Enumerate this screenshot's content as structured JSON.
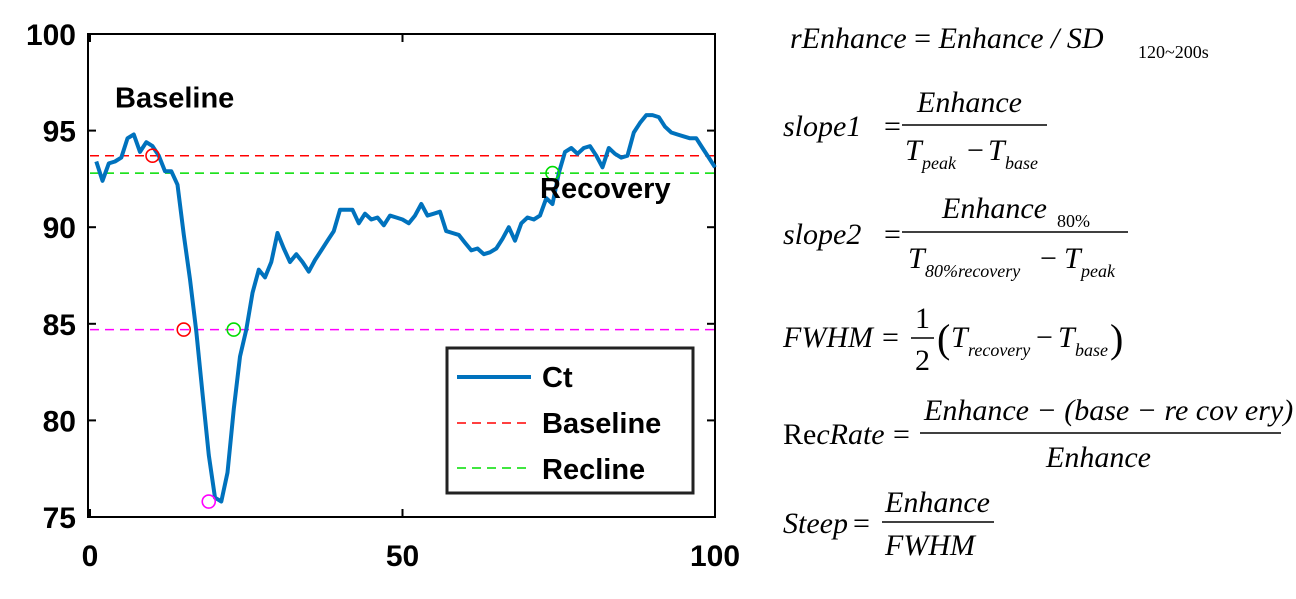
{
  "chart_data": {
    "type": "line",
    "xlim": [
      0,
      100
    ],
    "ylim": [
      75,
      100
    ],
    "xticks": [
      0,
      50,
      100
    ],
    "yticks": [
      75,
      80,
      85,
      90,
      95,
      100
    ],
    "xtick_labels": [
      "0",
      "50",
      "100"
    ],
    "ytick_labels": [
      "75",
      "80",
      "85",
      "90",
      "95",
      "100"
    ],
    "title": "",
    "xlabel": "",
    "ylabel": "",
    "grid": false,
    "legend_position": "bottom-right",
    "series": [
      {
        "name": "Ct",
        "color": "#0072BD",
        "x": [
          1,
          2,
          3,
          4,
          5,
          6,
          7,
          8,
          9,
          10,
          11,
          12,
          13,
          14,
          15,
          16,
          17,
          18,
          19,
          20,
          21,
          22,
          23,
          24,
          25,
          26,
          27,
          28,
          29,
          30,
          31,
          32,
          33,
          34,
          35,
          36,
          37,
          38,
          39,
          40,
          41,
          42,
          43,
          44,
          45,
          46,
          47,
          48,
          49,
          50,
          51,
          52,
          53,
          54,
          55,
          56,
          57,
          58,
          59,
          60,
          61,
          62,
          63,
          64,
          65,
          66,
          67,
          68,
          69,
          70,
          71,
          72,
          73,
          74,
          75,
          76,
          77,
          78,
          79,
          80,
          81,
          82,
          83,
          84,
          85,
          86,
          87,
          88,
          89,
          90,
          91,
          92,
          93,
          94,
          95,
          96,
          97,
          98,
          99,
          100
        ],
        "y": [
          93.4,
          92.4,
          93.3,
          93.4,
          93.6,
          94.6,
          94.8,
          93.9,
          94.4,
          94.2,
          93.7,
          92.9,
          92.9,
          92.2,
          89.6,
          87.3,
          84.6,
          81.4,
          78.2,
          76.0,
          75.8,
          77.3,
          80.6,
          83.3,
          84.7,
          86.6,
          87.8,
          87.4,
          88.2,
          89.7,
          88.9,
          88.2,
          88.6,
          88.2,
          87.7,
          88.3,
          88.8,
          89.3,
          89.8,
          90.9,
          90.9,
          90.9,
          90.2,
          90.7,
          90.4,
          90.5,
          90.1,
          90.6,
          90.5,
          90.4,
          90.2,
          90.6,
          91.2,
          90.6,
          90.7,
          90.8,
          89.8,
          89.7,
          89.6,
          89.2,
          88.8,
          88.9,
          88.6,
          88.7,
          88.9,
          89.4,
          90.0,
          89.3,
          90.2,
          90.5,
          90.4,
          90.6,
          91.5,
          91.2,
          92.8,
          93.9,
          94.1,
          93.8,
          94.1,
          94.2,
          93.7,
          93.1,
          94.1,
          93.8,
          93.6,
          93.7,
          94.9,
          95.4,
          95.8,
          95.8,
          95.7,
          95.2,
          94.9,
          94.8,
          94.7,
          94.6,
          94.6,
          94.1,
          93.6,
          93.1
        ]
      },
      {
        "name": "Baseline",
        "color": "#FF0000",
        "style": "dashed",
        "y": 93.7
      },
      {
        "name": "Recline",
        "color": "#00DD00",
        "style": "dashed",
        "y": 92.8
      },
      {
        "name": "",
        "color": "#FF00FF",
        "style": "dashed",
        "y": 84.7
      }
    ],
    "markers": [
      {
        "x": 10,
        "y": 93.7,
        "color": "#FF0000"
      },
      {
        "x": 15,
        "y": 84.7,
        "color": "#FF0000"
      },
      {
        "x": 19,
        "y": 75.8,
        "color": "#FF00FF"
      },
      {
        "x": 23,
        "y": 84.7,
        "color": "#00DD00"
      },
      {
        "x": 74,
        "y": 92.8,
        "color": "#00DD00"
      }
    ],
    "annotations": [
      {
        "text": "Baseline",
        "x": 4,
        "y": 96.2
      },
      {
        "text": "Recovery",
        "x": 72,
        "y": 91.5
      }
    ],
    "legend": [
      "Ct",
      "Baseline",
      "Recline"
    ]
  },
  "equations": {
    "rEnhance": {
      "lhs": "rEnhance",
      "rhs": "Enhance / SD",
      "sub": "120~200s"
    },
    "slope1": {
      "lhs": "slope1",
      "num": "Enhance",
      "den_a": "T",
      "den_a_sub": "peak",
      "den_b": "T",
      "den_b_sub": "base"
    },
    "slope2": {
      "lhs": "slope2",
      "num": "Enhance",
      "num_sub": "80%",
      "den_a": "T",
      "den_a_sub": "80%recovery",
      "den_b": "T",
      "den_b_sub": "peak"
    },
    "fwhm": {
      "lhs": "FWHM",
      "num": "1",
      "den": "2",
      "a": "T",
      "a_sub": "recovery",
      "b": "T",
      "b_sub": "base"
    },
    "recrate": {
      "lhs_a": "Re",
      "lhs_b": "cRate",
      "num": "Enhance − (base − re cov ery)",
      "den": "Enhance"
    },
    "steep": {
      "lhs": "Steep",
      "num": "Enhance",
      "den": "FWHM"
    }
  }
}
